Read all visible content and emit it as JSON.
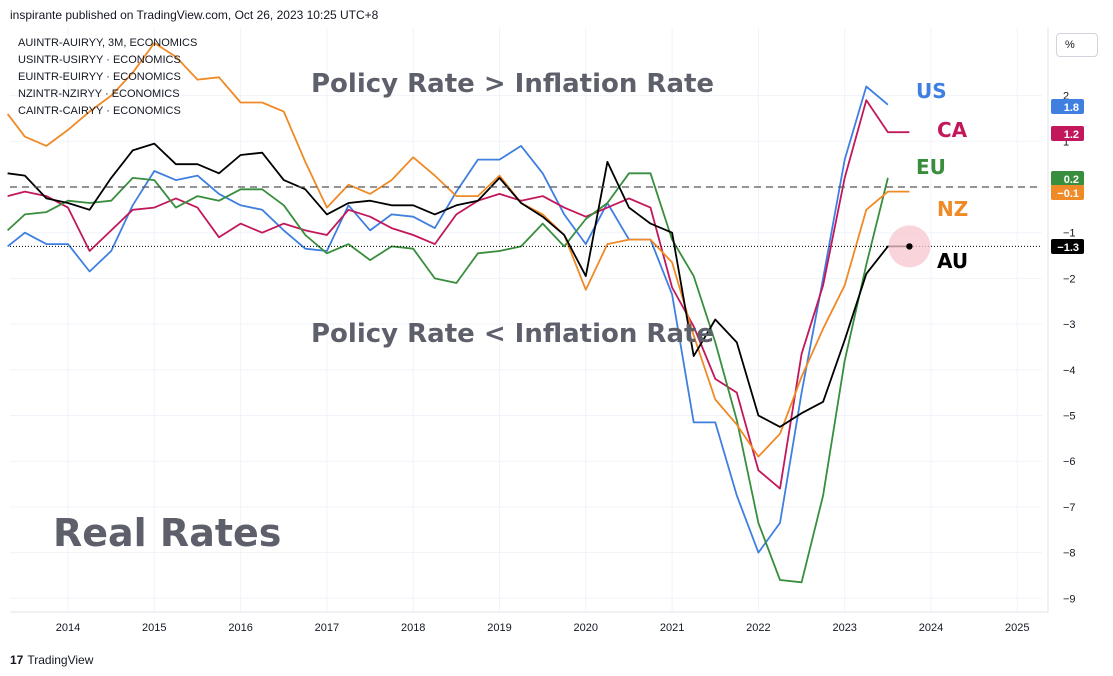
{
  "header": {
    "publisher_line": "inspirante published on TradingView.com, Oct 26, 2023 10:25 UTC+8"
  },
  "footer": {
    "brand": "TradingView",
    "mark": "17"
  },
  "toolbar": {
    "percent_label": "%"
  },
  "chart_data": {
    "type": "line",
    "title": "Real Rates",
    "annotations": [
      "Policy Rate > Inflation Rate",
      "Policy Rate < Inflation Rate"
    ],
    "legend": [
      "AUINTR-AUIRYY, 3M, ECONOMICS",
      "USINTR-USIRYY · ECONOMICS",
      "EUINTR-EUIRYY · ECONOMICS",
      "NZINTR-NZIRYY · ECONOMICS",
      "CAINTR-CAIRYY · ECONOMICS"
    ],
    "x_ticks": [
      "2014",
      "2015",
      "2016",
      "2017",
      "2018",
      "2019",
      "2020",
      "2021",
      "2022",
      "2023",
      "2024",
      "2025"
    ],
    "y_ticks": [
      "2",
      "1",
      "0",
      "−1",
      "−2",
      "−3",
      "−4",
      "−5",
      "−6",
      "−7",
      "−8",
      "−9"
    ],
    "y_tick_values": [
      2,
      1,
      0,
      -1,
      -2,
      -3,
      -4,
      -5,
      -6,
      -7,
      -8,
      -9
    ],
    "xlim": [
      2013.3,
      2025.5
    ],
    "ylim": [
      -9.2,
      3.3
    ],
    "zero_line": 0,
    "current_marker_value": -1.3,
    "series": [
      {
        "name": "US",
        "color": "#3f7fe0",
        "last_label": "1.8",
        "points": [
          [
            2013.3,
            -1.3
          ],
          [
            2013.5,
            -1.0
          ],
          [
            2013.75,
            -1.25
          ],
          [
            2014,
            -1.25
          ],
          [
            2014.25,
            -1.85
          ],
          [
            2014.5,
            -1.4
          ],
          [
            2014.75,
            -0.4
          ],
          [
            2015,
            0.35
          ],
          [
            2015.25,
            0.15
          ],
          [
            2015.5,
            0.25
          ],
          [
            2015.75,
            -0.15
          ],
          [
            2016,
            -0.4
          ],
          [
            2016.25,
            -0.5
          ],
          [
            2016.5,
            -0.95
          ],
          [
            2016.75,
            -1.35
          ],
          [
            2017,
            -1.4
          ],
          [
            2017.25,
            -0.4
          ],
          [
            2017.5,
            -0.95
          ],
          [
            2017.75,
            -0.6
          ],
          [
            2018,
            -0.65
          ],
          [
            2018.25,
            -0.9
          ],
          [
            2018.5,
            -0.1
          ],
          [
            2018.75,
            0.6
          ],
          [
            2019,
            0.6
          ],
          [
            2019.25,
            0.9
          ],
          [
            2019.5,
            0.3
          ],
          [
            2019.75,
            -0.6
          ],
          [
            2020,
            -1.25
          ],
          [
            2020.25,
            -0.35
          ],
          [
            2020.5,
            -1.15
          ],
          [
            2020.75,
            -1.15
          ],
          [
            2021,
            -2.35
          ],
          [
            2021.25,
            -5.15
          ],
          [
            2021.5,
            -5.15
          ],
          [
            2021.75,
            -6.75
          ],
          [
            2022,
            -8.0
          ],
          [
            2022.25,
            -7.35
          ],
          [
            2022.5,
            -4.5
          ],
          [
            2022.75,
            -2.0
          ],
          [
            2023,
            0.6
          ],
          [
            2023.25,
            2.2
          ],
          [
            2023.5,
            1.8
          ]
        ]
      },
      {
        "name": "CA",
        "color": "#c2185b",
        "last_label": "1.2",
        "points": [
          [
            2013.3,
            -0.2
          ],
          [
            2013.5,
            -0.1
          ],
          [
            2013.75,
            -0.2
          ],
          [
            2014,
            -0.45
          ],
          [
            2014.25,
            -1.4
          ],
          [
            2014.5,
            -0.95
          ],
          [
            2014.75,
            -0.5
          ],
          [
            2015,
            -0.45
          ],
          [
            2015.25,
            -0.25
          ],
          [
            2015.5,
            -0.45
          ],
          [
            2015.75,
            -1.1
          ],
          [
            2016,
            -0.8
          ],
          [
            2016.25,
            -1.0
          ],
          [
            2016.5,
            -0.8
          ],
          [
            2016.75,
            -0.95
          ],
          [
            2017,
            -1.05
          ],
          [
            2017.25,
            -0.5
          ],
          [
            2017.5,
            -0.65
          ],
          [
            2017.75,
            -0.9
          ],
          [
            2018,
            -1.05
          ],
          [
            2018.25,
            -1.25
          ],
          [
            2018.5,
            -0.6
          ],
          [
            2018.75,
            -0.3
          ],
          [
            2019,
            -0.15
          ],
          [
            2019.25,
            -0.3
          ],
          [
            2019.5,
            -0.2
          ],
          [
            2019.75,
            -0.45
          ],
          [
            2020,
            -0.65
          ],
          [
            2020.25,
            -0.45
          ],
          [
            2020.5,
            -0.25
          ],
          [
            2020.75,
            -0.45
          ],
          [
            2021,
            -2.2
          ],
          [
            2021.25,
            -3.05
          ],
          [
            2021.5,
            -4.2
          ],
          [
            2021.75,
            -4.5
          ],
          [
            2022,
            -6.2
          ],
          [
            2022.25,
            -6.6
          ],
          [
            2022.5,
            -3.65
          ],
          [
            2022.75,
            -2.15
          ],
          [
            2023,
            0.2
          ],
          [
            2023.25,
            1.9
          ],
          [
            2023.5,
            1.2
          ],
          [
            2023.75,
            1.2
          ]
        ]
      },
      {
        "name": "EU",
        "color": "#388e3c",
        "last_label": "0.2",
        "points": [
          [
            2013.3,
            -0.95
          ],
          [
            2013.5,
            -0.6
          ],
          [
            2013.75,
            -0.55
          ],
          [
            2014,
            -0.3
          ],
          [
            2014.25,
            -0.35
          ],
          [
            2014.5,
            -0.3
          ],
          [
            2014.75,
            0.2
          ],
          [
            2015,
            0.15
          ],
          [
            2015.25,
            -0.45
          ],
          [
            2015.5,
            -0.2
          ],
          [
            2015.75,
            -0.3
          ],
          [
            2016,
            -0.05
          ],
          [
            2016.25,
            -0.05
          ],
          [
            2016.5,
            -0.4
          ],
          [
            2016.75,
            -1.05
          ],
          [
            2017,
            -1.45
          ],
          [
            2017.25,
            -1.25
          ],
          [
            2017.5,
            -1.6
          ],
          [
            2017.75,
            -1.3
          ],
          [
            2018,
            -1.35
          ],
          [
            2018.25,
            -2.0
          ],
          [
            2018.5,
            -2.1
          ],
          [
            2018.75,
            -1.45
          ],
          [
            2019,
            -1.4
          ],
          [
            2019.25,
            -1.3
          ],
          [
            2019.5,
            -0.8
          ],
          [
            2019.75,
            -1.3
          ],
          [
            2020,
            -0.7
          ],
          [
            2020.25,
            -0.35
          ],
          [
            2020.5,
            0.3
          ],
          [
            2020.75,
            0.3
          ],
          [
            2021,
            -1.15
          ],
          [
            2021.25,
            -1.95
          ],
          [
            2021.5,
            -3.4
          ],
          [
            2021.75,
            -5.1
          ],
          [
            2022,
            -7.35
          ],
          [
            2022.25,
            -8.6
          ],
          [
            2022.5,
            -8.65
          ],
          [
            2022.75,
            -6.75
          ],
          [
            2023,
            -3.8
          ],
          [
            2023.25,
            -1.7
          ],
          [
            2023.5,
            0.2
          ]
        ]
      },
      {
        "name": "NZ",
        "color": "#ef8a26",
        "last_label": "−0.1",
        "points": [
          [
            2013.3,
            1.6
          ],
          [
            2013.5,
            1.1
          ],
          [
            2013.75,
            0.9
          ],
          [
            2014,
            1.25
          ],
          [
            2014.25,
            1.65
          ],
          [
            2014.5,
            2.0
          ],
          [
            2014.75,
            2.5
          ],
          [
            2015,
            3.15
          ],
          [
            2015.25,
            2.85
          ],
          [
            2015.5,
            2.35
          ],
          [
            2015.75,
            2.4
          ],
          [
            2016,
            1.85
          ],
          [
            2016.25,
            1.85
          ],
          [
            2016.5,
            1.65
          ],
          [
            2016.75,
            0.55
          ],
          [
            2017,
            -0.45
          ],
          [
            2017.25,
            0.05
          ],
          [
            2017.5,
            -0.15
          ],
          [
            2017.75,
            0.15
          ],
          [
            2018,
            0.65
          ],
          [
            2018.25,
            0.25
          ],
          [
            2018.5,
            -0.2
          ],
          [
            2018.75,
            -0.2
          ],
          [
            2019,
            0.25
          ],
          [
            2019.25,
            -0.35
          ],
          [
            2019.5,
            -0.6
          ],
          [
            2019.75,
            -1.05
          ],
          [
            2020,
            -2.25
          ],
          [
            2020.25,
            -1.25
          ],
          [
            2020.5,
            -1.15
          ],
          [
            2020.75,
            -1.15
          ],
          [
            2021,
            -1.65
          ],
          [
            2021.25,
            -3.25
          ],
          [
            2021.5,
            -4.65
          ],
          [
            2021.75,
            -5.2
          ],
          [
            2022,
            -5.9
          ],
          [
            2022.25,
            -5.4
          ],
          [
            2022.5,
            -4.15
          ],
          [
            2022.75,
            -3.1
          ],
          [
            2023,
            -2.15
          ],
          [
            2023.25,
            -0.5
          ],
          [
            2023.5,
            -0.1
          ],
          [
            2023.75,
            -0.1
          ]
        ]
      },
      {
        "name": "AU",
        "color": "#000000",
        "last_label": "−1.3",
        "points": [
          [
            2013.3,
            0.3
          ],
          [
            2013.5,
            0.25
          ],
          [
            2013.75,
            -0.25
          ],
          [
            2014,
            -0.35
          ],
          [
            2014.25,
            -0.5
          ],
          [
            2014.5,
            0.2
          ],
          [
            2014.75,
            0.8
          ],
          [
            2015,
            0.95
          ],
          [
            2015.25,
            0.5
          ],
          [
            2015.5,
            0.5
          ],
          [
            2015.75,
            0.3
          ],
          [
            2016,
            0.7
          ],
          [
            2016.25,
            0.75
          ],
          [
            2016.5,
            0.15
          ],
          [
            2016.75,
            -0.05
          ],
          [
            2017,
            -0.6
          ],
          [
            2017.25,
            -0.35
          ],
          [
            2017.5,
            -0.3
          ],
          [
            2017.75,
            -0.4
          ],
          [
            2018,
            -0.4
          ],
          [
            2018.25,
            -0.6
          ],
          [
            2018.5,
            -0.4
          ],
          [
            2018.75,
            -0.3
          ],
          [
            2019,
            0.2
          ],
          [
            2019.25,
            -0.35
          ],
          [
            2019.5,
            -0.65
          ],
          [
            2019.75,
            -1.05
          ],
          [
            2020,
            -1.95
          ],
          [
            2020.25,
            0.55
          ],
          [
            2020.5,
            -0.45
          ],
          [
            2020.75,
            -0.8
          ],
          [
            2021,
            -1.0
          ],
          [
            2021.25,
            -3.7
          ],
          [
            2021.5,
            -2.9
          ],
          [
            2021.75,
            -3.4
          ],
          [
            2022,
            -5.0
          ],
          [
            2022.25,
            -5.25
          ],
          [
            2022.5,
            -4.95
          ],
          [
            2022.75,
            -4.7
          ],
          [
            2023,
            -3.35
          ],
          [
            2023.25,
            -1.9
          ],
          [
            2023.5,
            -1.3
          ],
          [
            2023.75,
            -1.3
          ]
        ]
      }
    ]
  }
}
